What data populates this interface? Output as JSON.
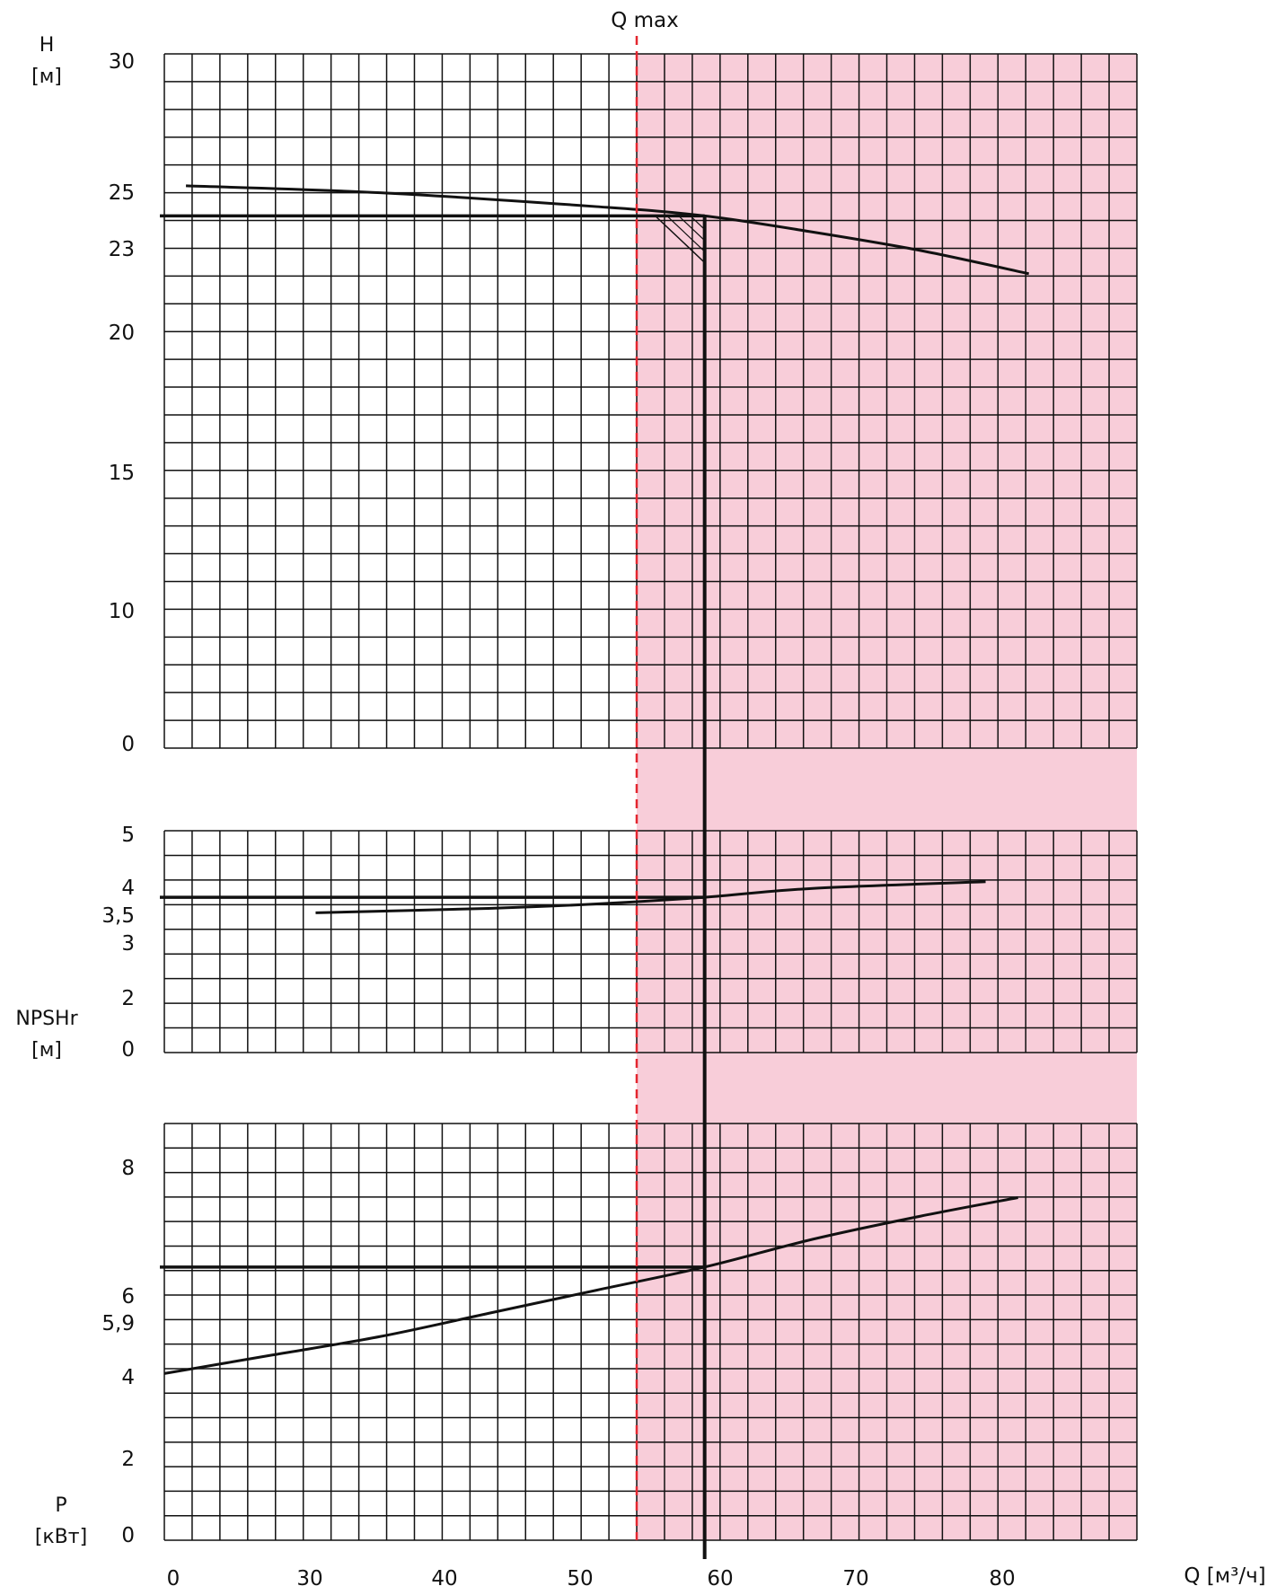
{
  "chart_data": {
    "type": "line",
    "qmax_label": "Q max",
    "x_axis": {
      "label": "Q [м³/ч]",
      "range": [
        0,
        90
      ],
      "tick_labels": [
        "0",
        "30",
        "40",
        "50",
        "60",
        "70",
        "80"
      ]
    },
    "operating_point": {
      "Q": 50,
      "H": 23,
      "NPSHr": 3.5,
      "P": 5.9
    },
    "panels": [
      {
        "id": "head",
        "axis_label": [
          "H",
          "[м]"
        ],
        "ticks": [
          {
            "label": "30"
          },
          {
            "label": "25"
          },
          {
            "label": "23"
          },
          {
            "label": "20"
          },
          {
            "label": "15"
          },
          {
            "label": "10"
          },
          {
            "label": "0"
          }
        ],
        "series": [
          {
            "curve": "H(Q)",
            "points": [
              [
                2,
                24.3
              ],
              [
                20,
                24.0
              ],
              [
                40,
                23.4
              ],
              [
                50,
                23.0
              ],
              [
                60,
                22.3
              ],
              [
                70,
                21.5
              ],
              [
                80,
                20.5
              ]
            ]
          }
        ],
        "reference_lines": [
          {
            "value": 23,
            "label": "23"
          }
        ]
      },
      {
        "id": "npshr",
        "axis_label": [
          "NPSHr",
          "[м]"
        ],
        "ticks": [
          {
            "label": "5"
          },
          {
            "label": "4"
          },
          {
            "label": "3,5"
          },
          {
            "label": "3"
          },
          {
            "label": "2"
          },
          {
            "label": "0"
          }
        ],
        "series": [
          {
            "curve": "NPSHr(Q)",
            "points": [
              [
                14,
                3.15
              ],
              [
                30,
                3.25
              ],
              [
                40,
                3.35
              ],
              [
                50,
                3.5
              ],
              [
                60,
                3.7
              ],
              [
                76,
                3.85
              ]
            ]
          }
        ],
        "reference_lines": [
          {
            "value": 3.5,
            "label": "3,5"
          }
        ]
      },
      {
        "id": "power",
        "axis_label": [
          "P",
          "[кВт]"
        ],
        "ticks": [
          {
            "label": "8"
          },
          {
            "label": "6"
          },
          {
            "label": "5,9"
          },
          {
            "label": "4"
          },
          {
            "label": "2"
          },
          {
            "label": "0"
          }
        ],
        "series": [
          {
            "curve": "P(Q)",
            "points": [
              [
                0,
                3.6
              ],
              [
                10,
                4.0
              ],
              [
                20,
                4.4
              ],
              [
                30,
                4.9
              ],
              [
                40,
                5.4
              ],
              [
                50,
                5.9
              ],
              [
                60,
                6.5
              ],
              [
                70,
                7.0
              ],
              [
                79,
                7.4
              ]
            ]
          }
        ],
        "reference_lines": [
          {
            "value": 5.9,
            "label": "5,9"
          }
        ]
      }
    ],
    "colors": {
      "line": "#111111",
      "grid": "#111111",
      "qmax": "#e3262f",
      "zone": "#f8cdd9"
    },
    "grid": true
  }
}
